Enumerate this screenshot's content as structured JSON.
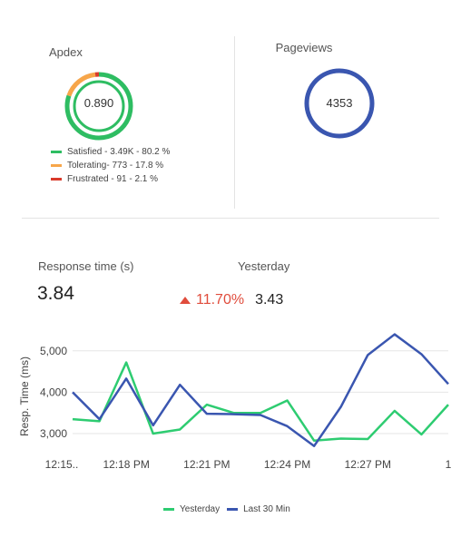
{
  "apdex": {
    "title": "Apdex",
    "score": "0.890",
    "satisfied_fraction": 0.802,
    "tolerating_fraction": 0.178,
    "frustrated_fraction": 0.021,
    "legend": [
      {
        "label": "Satisfied  - 3.49K - 80.2 %",
        "color": "#2ebd62"
      },
      {
        "label": "Tolerating- 773 - 17.8 %",
        "color": "#f7a64a"
      },
      {
        "label": "Frustrated - 91 - 2.1 %",
        "color": "#d93a2b"
      }
    ]
  },
  "pageviews": {
    "title": "Pageviews",
    "value": "4353",
    "color": "#3a56b0"
  },
  "response": {
    "title": "Response time (s)",
    "value": "3.84",
    "compare_label": "Yesterday",
    "delta": "11.70%",
    "delta_color": "#e04c3c",
    "yesterday_value": "3.43"
  },
  "chart_data": {
    "type": "line",
    "ylabel": "Resp. Time (ms)",
    "ylim": [
      2650,
      5500
    ],
    "yticks": [
      3000,
      4000,
      5000
    ],
    "ytick_labels": [
      "3,000",
      "4,000",
      "5,000"
    ],
    "x_tick_labels": [
      "12:15..",
      "12:18 PM",
      "12:21 PM",
      "12:24 PM",
      "12:27 PM",
      "1"
    ],
    "x_tick_index": [
      0,
      2,
      5,
      8,
      11,
      14
    ],
    "grid": true,
    "legend_position": "bottom-center",
    "series": [
      {
        "name": "Yesterday",
        "color": "#2ecc71",
        "values": [
          3350,
          3300,
          4720,
          3000,
          3100,
          3700,
          3500,
          3500,
          3800,
          2830,
          2880,
          2870,
          3550,
          2980,
          3700
        ]
      },
      {
        "name": "Last 30 Min",
        "color": "#3a56b0",
        "values": [
          4000,
          3350,
          4330,
          3200,
          4180,
          3480,
          3470,
          3450,
          3180,
          2700,
          3650,
          4900,
          5400,
          4920,
          4200
        ]
      }
    ]
  }
}
